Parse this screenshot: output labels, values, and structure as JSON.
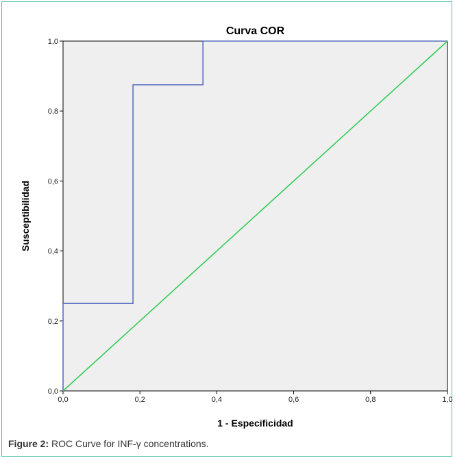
{
  "chart_data": {
    "type": "line",
    "title": "Curva COR",
    "xlabel": "1 - Especificidad",
    "ylabel": "Susceptibilidad",
    "xlim": [
      0,
      1
    ],
    "ylim": [
      0,
      1
    ],
    "xticks": [
      "0,0",
      "0,2",
      "0,4",
      "0,6",
      "0,8",
      "1,0"
    ],
    "yticks": [
      "0,0",
      "0,2",
      "0,4",
      "0,6",
      "0,8",
      "1,0"
    ],
    "grid": false,
    "series": [
      {
        "color": "#5b6fc0",
        "x": [
          0,
          0,
          0.182,
          0.182,
          0.364,
          0.364,
          1
        ],
        "y": [
          0,
          0.25,
          0.25,
          0.875,
          0.875,
          1,
          1
        ]
      },
      {
        "color": "#33cc55",
        "x": [
          0,
          1
        ],
        "y": [
          0,
          1
        ]
      }
    ]
  },
  "caption": {
    "label": "Figure 2:",
    "text": " ROC Curve for INF-γ concentrations."
  },
  "colors": {
    "frame_border": "#45c0a8",
    "plot_background": "#efefef"
  }
}
